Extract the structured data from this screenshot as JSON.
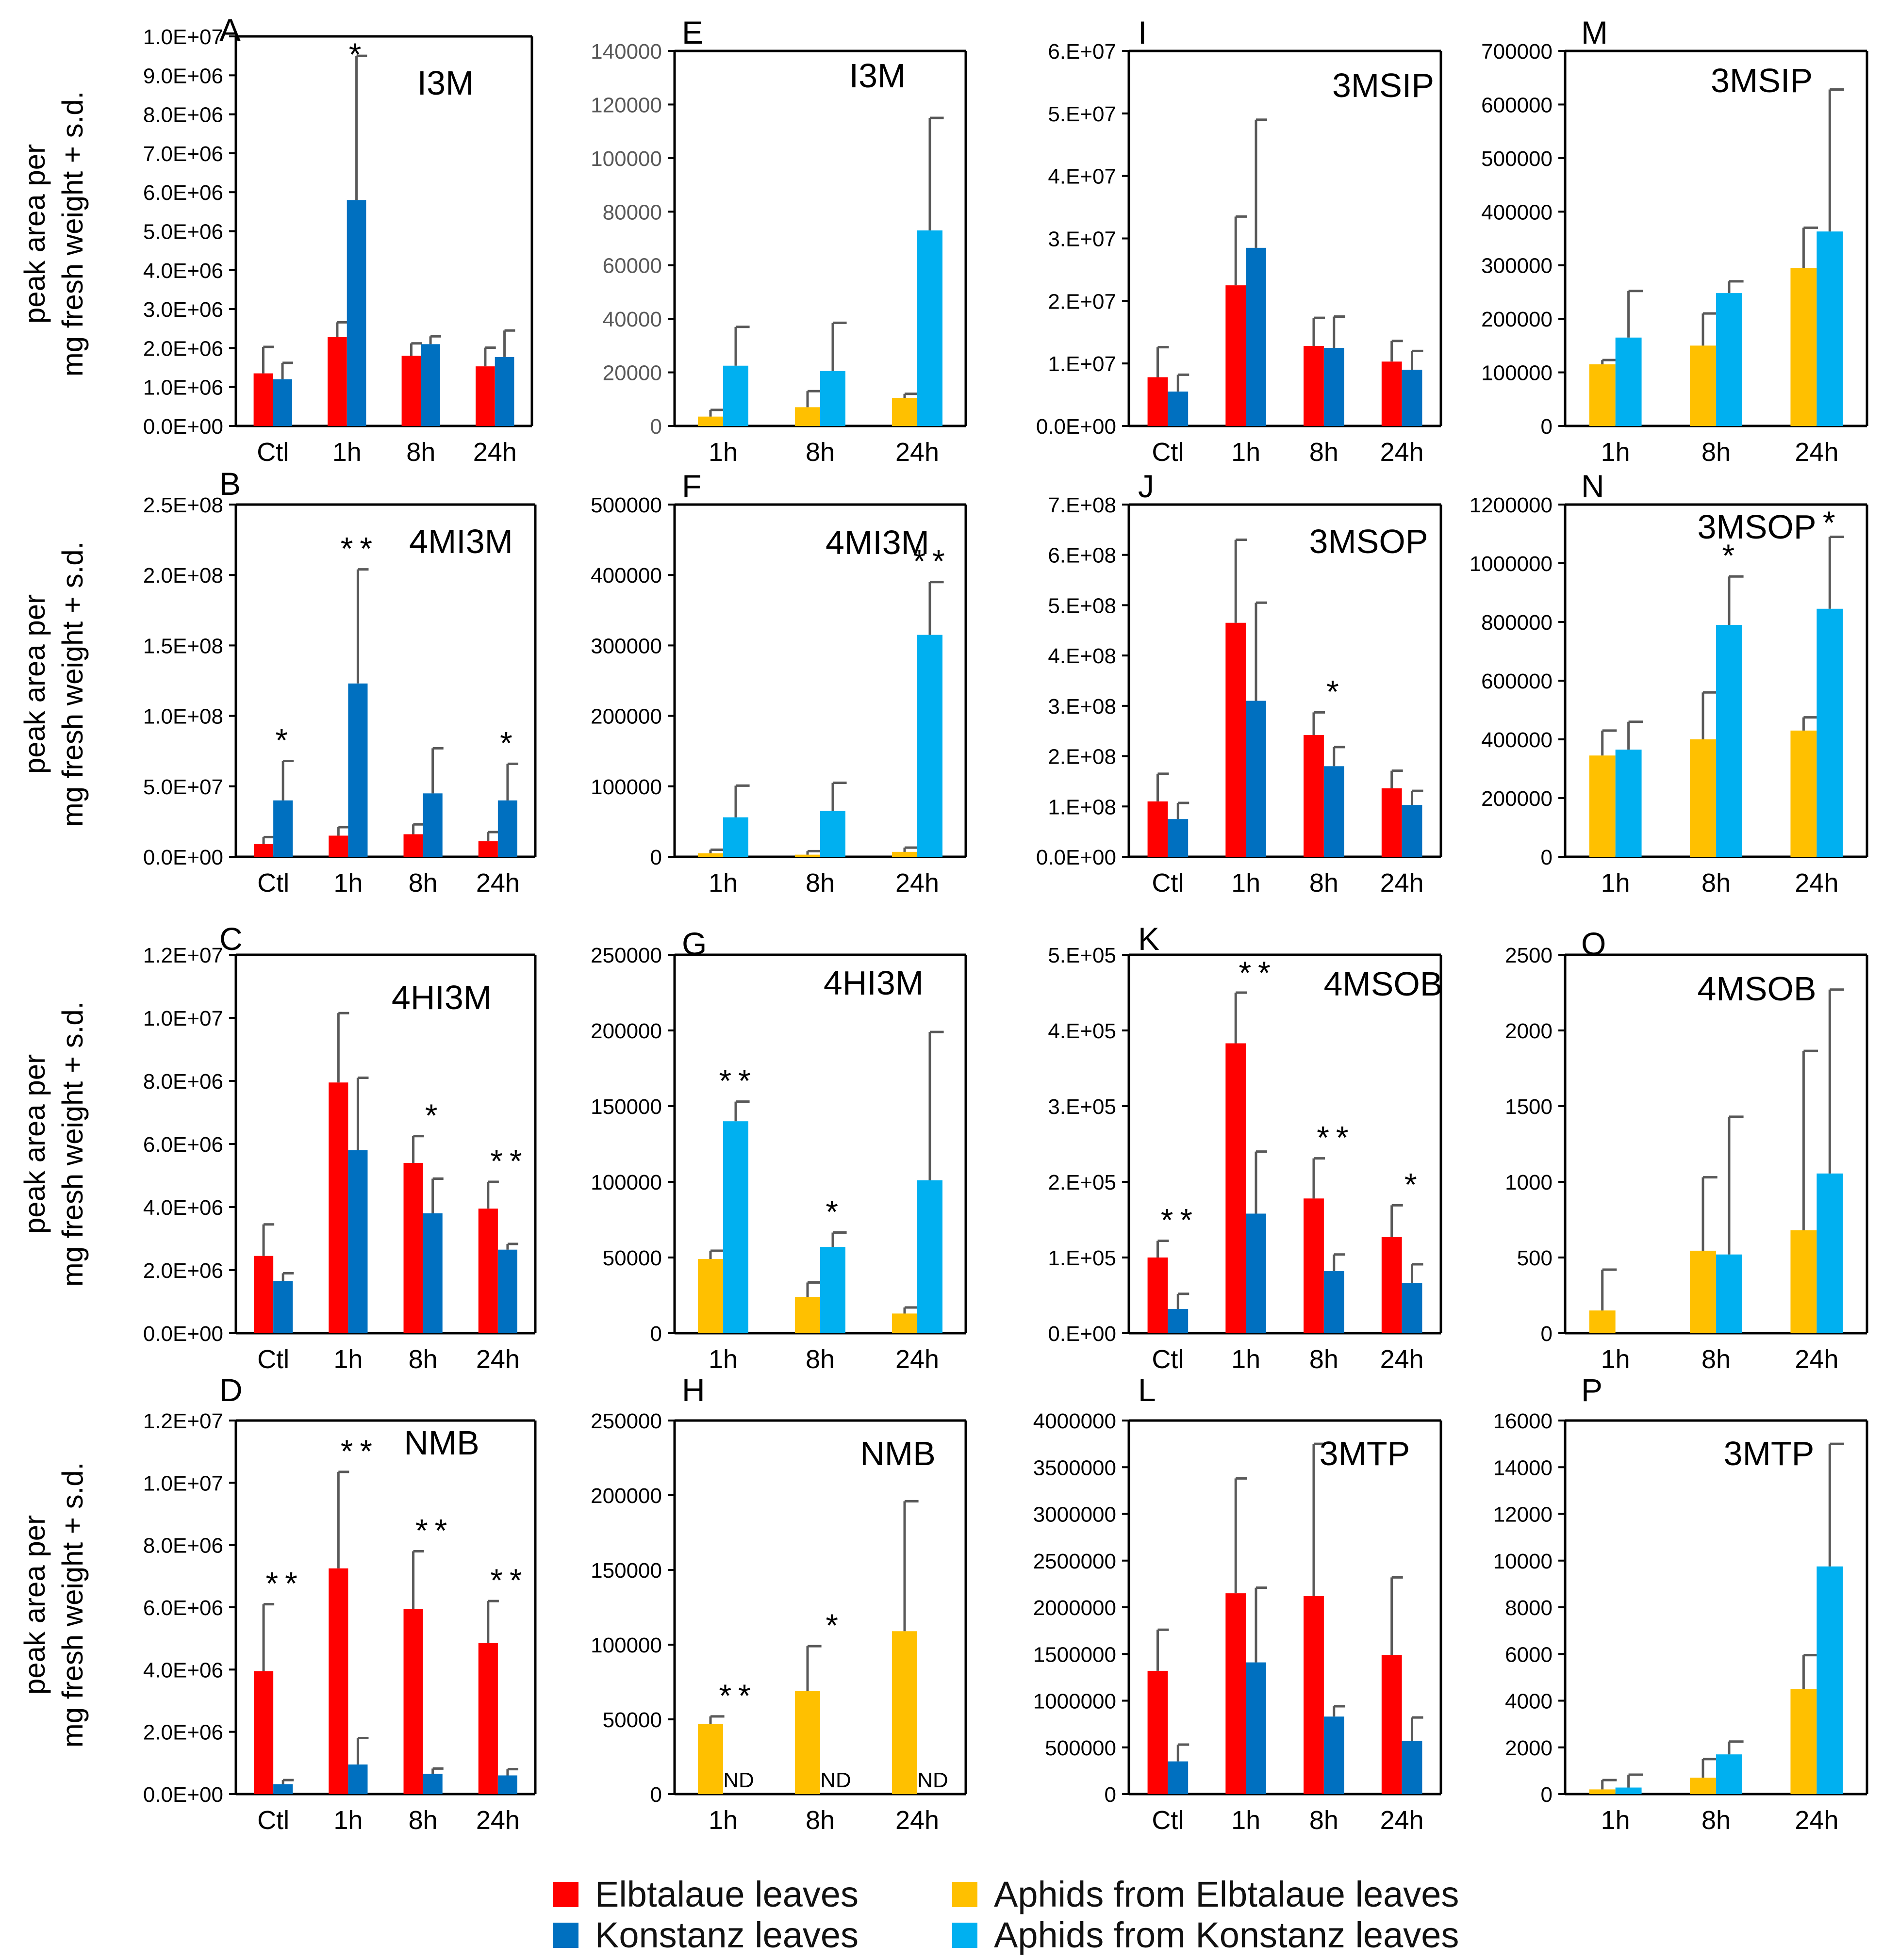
{
  "colors": {
    "elbtalaue_leaves": "#ff0000",
    "konstanz_leaves": "#0070c0",
    "aphids_elbtalaue": "#ffc000",
    "aphids_konstanz": "#00b0f0",
    "error_bar": "#595959",
    "axis": "#000000",
    "tick_text_black": "#000000",
    "tick_text_grey": "#595959"
  },
  "y_axis_label": [
    "peak area per",
    "mg fresh weight + s.d."
  ],
  "legend": [
    {
      "label": "Elbtalaue leaves",
      "color": "#ff0000"
    },
    {
      "label": "Konstanz leaves",
      "color": "#0070c0"
    },
    {
      "label": "Aphids from Elbtalaue leaves",
      "color": "#ffc000"
    },
    {
      "label": "Aphids from Konstanz leaves",
      "color": "#00b0f0"
    }
  ],
  "chart_data": [
    {
      "panel": "A",
      "type": "bar",
      "title": "I3M",
      "categories": [
        "Ctl",
        "1h",
        "8h",
        "24h"
      ],
      "ylim": [
        0,
        10000000
      ],
      "yticks": [
        "0.0E+00",
        "1.0E+06",
        "2.0E+06",
        "3.0E+06",
        "4.0E+06",
        "5.0E+06",
        "6.0E+06",
        "7.0E+06",
        "8.0E+06",
        "9.0E+06",
        "1.0E+07"
      ],
      "series": [
        {
          "name": "Elbtalaue leaves",
          "values": [
            1350000,
            2280000,
            1800000,
            1530000
          ],
          "errors": [
            680000,
            380000,
            320000,
            480000
          ]
        },
        {
          "name": "Konstanz leaves",
          "values": [
            1200000,
            5800000,
            2100000,
            1770000
          ],
          "errors": [
            420000,
            3700000,
            200000,
            680000
          ]
        }
      ],
      "annotations": [
        {
          "text": "*",
          "category": 1
        }
      ]
    },
    {
      "panel": "B",
      "type": "bar",
      "title": "4MI3M",
      "categories": [
        "Ctl",
        "1h",
        "8h",
        "24h"
      ],
      "ylim": [
        0,
        250000000
      ],
      "yticks": [
        "0.0E+00",
        "5.0E+07",
        "1.0E+08",
        "1.5E+08",
        "2.0E+08",
        "2.5E+08"
      ],
      "series": [
        {
          "name": "Elbtalaue leaves",
          "values": [
            9000000,
            15000000,
            16000000,
            11000000
          ],
          "errors": [
            5000000,
            6000000,
            7000000,
            6500000
          ]
        },
        {
          "name": "Konstanz leaves",
          "values": [
            40000000,
            123000000,
            45000000,
            40000000
          ],
          "errors": [
            28000000,
            81000000,
            32000000,
            26000000
          ]
        }
      ],
      "annotations": [
        {
          "text": "*",
          "category": 0
        },
        {
          "text": "**",
          "category": 1
        },
        {
          "text": "*",
          "category": 3
        }
      ]
    },
    {
      "panel": "C",
      "type": "bar",
      "title": "4HI3M",
      "categories": [
        "Ctl",
        "1h",
        "8h",
        "24h"
      ],
      "ylim": [
        0,
        12000000
      ],
      "yticks": [
        "0.0E+00",
        "2.0E+06",
        "4.0E+06",
        "6.0E+06",
        "8.0E+06",
        "1.0E+07",
        "1.2E+07"
      ],
      "series": [
        {
          "name": "Elbtalaue leaves",
          "values": [
            2450000,
            7950000,
            5400000,
            3950000
          ],
          "errors": [
            1000000,
            2200000,
            850000,
            850000
          ]
        },
        {
          "name": "Konstanz leaves",
          "values": [
            1650000,
            5800000,
            3800000,
            2650000
          ],
          "errors": [
            250000,
            2300000,
            1100000,
            180000
          ]
        }
      ],
      "annotations": [
        {
          "text": "*",
          "category": 2
        },
        {
          "text": "**",
          "category": 3
        }
      ]
    },
    {
      "panel": "D",
      "type": "bar",
      "title": "NMB",
      "categories": [
        "Ctl",
        "1h",
        "8h",
        "24h"
      ],
      "ylim": [
        0,
        12000000
      ],
      "yticks": [
        "0.0E+00",
        "2.0E+06",
        "4.0E+06",
        "6.0E+06",
        "8.0E+06",
        "1.0E+07",
        "1.2E+07"
      ],
      "series": [
        {
          "name": "Elbtalaue leaves",
          "values": [
            3950000,
            7250000,
            5950000,
            4850000
          ],
          "errors": [
            2150000,
            3100000,
            1850000,
            1350000
          ]
        },
        {
          "name": "Konstanz leaves",
          "values": [
            320000,
            950000,
            650000,
            600000
          ],
          "errors": [
            130000,
            850000,
            170000,
            200000
          ]
        }
      ],
      "annotations": [
        {
          "text": "**",
          "category": 0
        },
        {
          "text": "**",
          "category": 1
        },
        {
          "text": "**",
          "category": 2
        },
        {
          "text": "**",
          "category": 3
        }
      ]
    },
    {
      "panel": "E",
      "type": "bar",
      "title": "I3M",
      "categories": [
        "1h",
        "8h",
        "24h"
      ],
      "ylim": [
        0,
        140000
      ],
      "yticks": [
        "0",
        "20000",
        "40000",
        "60000",
        "80000",
        "100000",
        "120000",
        "140000"
      ],
      "series": [
        {
          "name": "Aphids from Elbtalaue leaves",
          "values": [
            3500,
            7000,
            10500
          ],
          "errors": [
            2500,
            6000,
            1500
          ]
        },
        {
          "name": "Aphids from Konstanz leaves",
          "values": [
            22500,
            20500,
            73000
          ],
          "errors": [
            14500,
            18000,
            42000
          ]
        }
      ],
      "annotations": []
    },
    {
      "panel": "F",
      "type": "bar",
      "title": "4MI3M",
      "categories": [
        "1h",
        "8h",
        "24h"
      ],
      "ylim": [
        0,
        500000
      ],
      "yticks": [
        "0",
        "100000",
        "200000",
        "300000",
        "400000",
        "500000"
      ],
      "series": [
        {
          "name": "Aphids from Elbtalaue leaves",
          "values": [
            5000,
            3000,
            7000
          ],
          "errors": [
            5000,
            5000,
            6000
          ]
        },
        {
          "name": "Aphids from Konstanz leaves",
          "values": [
            56000,
            65000,
            315000
          ],
          "errors": [
            45000,
            40000,
            75000
          ]
        }
      ],
      "annotations": [
        {
          "text": "**",
          "category": 2
        }
      ]
    },
    {
      "panel": "G",
      "type": "bar",
      "title": "4HI3M",
      "categories": [
        "1h",
        "8h",
        "24h"
      ],
      "ylim": [
        0,
        250000
      ],
      "yticks": [
        "0",
        "50000",
        "100000",
        "150000",
        "200000",
        "250000"
      ],
      "series": [
        {
          "name": "Aphids from Elbtalaue leaves",
          "values": [
            49000,
            24000,
            13000
          ],
          "errors": [
            5500,
            9500,
            4000
          ]
        },
        {
          "name": "Aphids from Konstanz leaves",
          "values": [
            140000,
            57000,
            101000
          ],
          "errors": [
            13000,
            9500,
            98000
          ]
        }
      ],
      "annotations": [
        {
          "text": "**",
          "category": 0
        },
        {
          "text": "*",
          "category": 1
        }
      ]
    },
    {
      "panel": "H",
      "type": "bar",
      "title": "NMB",
      "categories": [
        "1h",
        "8h",
        "24h"
      ],
      "ylim": [
        0,
        250000
      ],
      "yticks": [
        "0",
        "50000",
        "100000",
        "150000",
        "200000",
        "250000"
      ],
      "series": [
        {
          "name": "Aphids from Elbtalaue leaves",
          "values": [
            47000,
            69000,
            109000
          ],
          "errors": [
            5000,
            30000,
            87000
          ]
        },
        {
          "name": "Aphids from Konstanz leaves",
          "values": [
            0,
            0,
            0
          ],
          "errors": [
            0,
            0,
            0
          ],
          "labels": [
            "ND",
            "ND",
            "ND"
          ]
        }
      ],
      "annotations": [
        {
          "text": "**",
          "category": 0
        },
        {
          "text": "*",
          "category": 1
        }
      ]
    },
    {
      "panel": "I",
      "type": "bar",
      "title": "3MSIP",
      "categories": [
        "Ctl",
        "1h",
        "8h",
        "24h"
      ],
      "ylim": [
        0,
        60000000
      ],
      "yticks": [
        "0.0E+00",
        "1.E+07",
        "2.E+07",
        "3.E+07",
        "4.E+07",
        "5.E+07",
        "6.E+07"
      ],
      "series": [
        {
          "name": "Elbtalaue leaves",
          "values": [
            7800000,
            22500000,
            12800000,
            10300000
          ],
          "errors": [
            4800000,
            11000000,
            4500000,
            3300000
          ]
        },
        {
          "name": "Konstanz leaves",
          "values": [
            5500000,
            28500000,
            12500000,
            9000000
          ],
          "errors": [
            2700000,
            20500000,
            5000000,
            3000000
          ]
        }
      ],
      "annotations": []
    },
    {
      "panel": "J",
      "type": "bar",
      "title": "3MSOP",
      "categories": [
        "Ctl",
        "1h",
        "8h",
        "24h"
      ],
      "ylim": [
        0,
        700000000
      ],
      "yticks": [
        "0.0E+00",
        "1.E+08",
        "2.E+08",
        "3.E+08",
        "4.E+08",
        "5.E+08",
        "6.E+08",
        "7.E+08"
      ],
      "series": [
        {
          "name": "Elbtalaue leaves",
          "values": [
            110000000,
            465000000,
            242000000,
            136000000
          ],
          "errors": [
            55000000,
            165000000,
            45000000,
            35000000
          ]
        },
        {
          "name": "Konstanz leaves",
          "values": [
            75000000,
            310000000,
            180000000,
            103000000
          ],
          "errors": [
            32000000,
            195000000,
            38000000,
            28000000
          ]
        }
      ],
      "annotations": [
        {
          "text": "*",
          "category": 2
        }
      ]
    },
    {
      "panel": "K",
      "type": "bar",
      "title": "4MSOB",
      "categories": [
        "Ctl",
        "1h",
        "8h",
        "24h"
      ],
      "ylim": [
        0,
        500000
      ],
      "yticks": [
        "0.E+00",
        "1.E+05",
        "2.E+05",
        "3.E+05",
        "4.E+05",
        "5.E+05"
      ],
      "series": [
        {
          "name": "Elbtalaue leaves",
          "values": [
            100000,
            383000,
            178000,
            127000
          ],
          "errors": [
            22000,
            67000,
            53000,
            42000
          ]
        },
        {
          "name": "Konstanz leaves",
          "values": [
            32000,
            158000,
            82000,
            66000
          ],
          "errors": [
            20000,
            82000,
            22000,
            25000
          ]
        }
      ],
      "annotations": [
        {
          "text": "**",
          "category": 0
        },
        {
          "text": "**",
          "category": 1
        },
        {
          "text": "**",
          "category": 2
        },
        {
          "text": "*",
          "category": 3
        }
      ]
    },
    {
      "panel": "L",
      "type": "bar",
      "title": "3MTP",
      "categories": [
        "Ctl",
        "1h",
        "8h",
        "24h"
      ],
      "ylim": [
        0,
        4000000
      ],
      "yticks": [
        "0",
        "500000",
        "1000000",
        "1500000",
        "2000000",
        "2500000",
        "3000000",
        "3500000",
        "4000000"
      ],
      "series": [
        {
          "name": "Elbtalaue leaves",
          "values": [
            1320000,
            2150000,
            2120000,
            1490000
          ],
          "errors": [
            440000,
            1230000,
            1630000,
            830000
          ]
        },
        {
          "name": "Konstanz leaves",
          "values": [
            350000,
            1410000,
            830000,
            570000
          ],
          "errors": [
            180000,
            800000,
            110000,
            250000
          ]
        }
      ],
      "annotations": []
    },
    {
      "panel": "M",
      "type": "bar",
      "title": "3MSIP",
      "categories": [
        "1h",
        "8h",
        "24h"
      ],
      "ylim": [
        0,
        700000
      ],
      "yticks": [
        "0",
        "100000",
        "200000",
        "300000",
        "400000",
        "500000",
        "600000",
        "700000"
      ],
      "series": [
        {
          "name": "Aphids from Elbtalaue leaves",
          "values": [
            115000,
            150000,
            295000
          ],
          "errors": [
            8000,
            60000,
            75000
          ]
        },
        {
          "name": "Aphids from Konstanz leaves",
          "values": [
            165000,
            248000,
            363000
          ],
          "errors": [
            87000,
            22000,
            265000
          ]
        }
      ],
      "annotations": []
    },
    {
      "panel": "N",
      "type": "bar",
      "title": "3MSOP",
      "categories": [
        "1h",
        "8h",
        "24h"
      ],
      "ylim": [
        0,
        1200000
      ],
      "yticks": [
        "0",
        "200000",
        "400000",
        "600000",
        "800000",
        "1000000",
        "1200000"
      ],
      "series": [
        {
          "name": "Aphids from Elbtalaue leaves",
          "values": [
            345000,
            400000,
            430000
          ],
          "errors": [
            85000,
            160000,
            45000
          ]
        },
        {
          "name": "Aphids from Konstanz leaves",
          "values": [
            365000,
            790000,
            845000
          ],
          "errors": [
            95000,
            165000,
            245000
          ]
        }
      ],
      "annotations": [
        {
          "text": "*",
          "category": 1
        },
        {
          "text": "*",
          "category": 2
        }
      ]
    },
    {
      "panel": "O",
      "type": "bar",
      "title": "4MSOB",
      "categories": [
        "1h",
        "8h",
        "24h"
      ],
      "ylim": [
        0,
        2500
      ],
      "yticks": [
        "0",
        "500",
        "1000",
        "1500",
        "2000",
        "2500"
      ],
      "series": [
        {
          "name": "Aphids from Elbtalaue leaves",
          "values": [
            150,
            545,
            680
          ],
          "errors": [
            270,
            485,
            1185
          ]
        },
        {
          "name": "Aphids from Konstanz leaves",
          "values": [
            0,
            520,
            1055
          ],
          "errors": [
            0,
            910,
            1215
          ]
        }
      ],
      "annotations": []
    },
    {
      "panel": "P",
      "type": "bar",
      "title": "3MTP",
      "categories": [
        "1h",
        "8h",
        "24h"
      ],
      "ylim": [
        0,
        16000
      ],
      "yticks": [
        "0",
        "2000",
        "4000",
        "6000",
        "8000",
        "10000",
        "12000",
        "14000",
        "16000"
      ],
      "series": [
        {
          "name": "Aphids from Elbtalaue leaves",
          "values": [
            200,
            700,
            4500
          ],
          "errors": [
            400,
            800,
            1450
          ]
        },
        {
          "name": "Aphids from Konstanz leaves",
          "values": [
            280,
            1700,
            9750
          ],
          "errors": [
            550,
            550,
            5250
          ]
        }
      ],
      "annotations": []
    }
  ]
}
